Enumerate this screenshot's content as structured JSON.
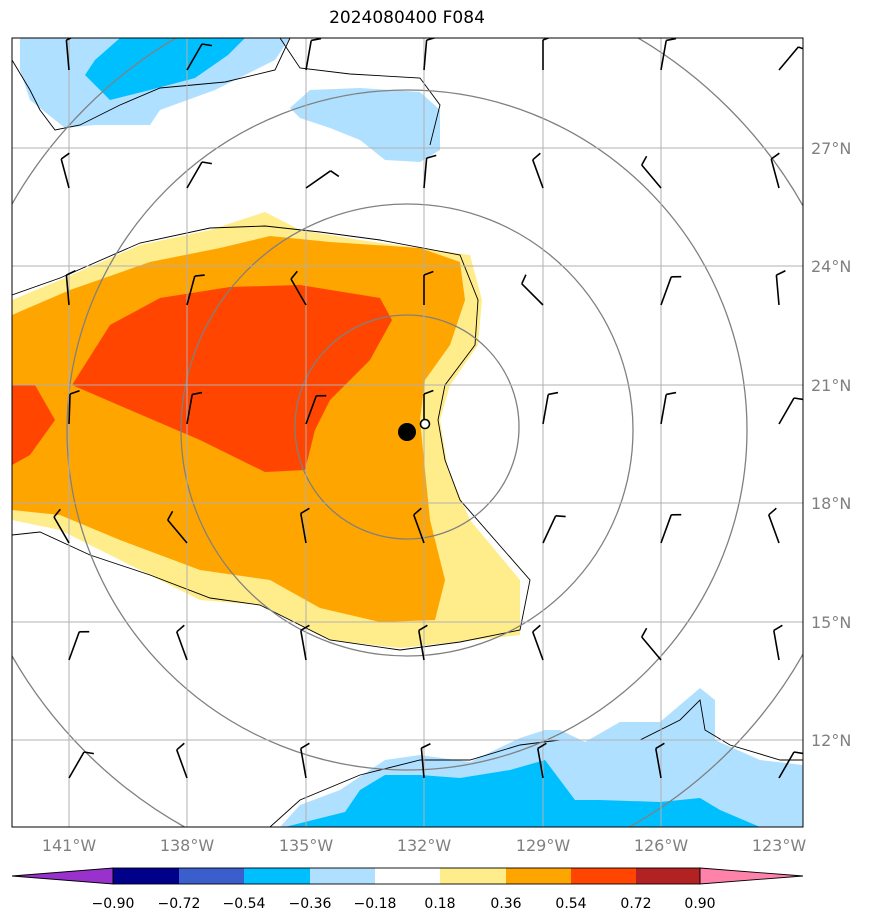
{
  "title": "2024080400 F084",
  "lat_labels": [
    "27°N",
    "24°N",
    "21°N",
    "18°N",
    "15°N",
    "12°N"
  ],
  "lon_labels": [
    "141°W",
    "138°W",
    "135°W",
    "132°W",
    "129°W",
    "126°W",
    "123°W"
  ],
  "colorbar": {
    "ticks": [
      "−0.90",
      "−0.72",
      "−0.54",
      "−0.36",
      "−0.18",
      "0.18",
      "0.36",
      "0.54",
      "0.72",
      "0.90"
    ],
    "colors": [
      "#9932cc",
      "#00008b",
      "#3a5fcd",
      "#00bfff",
      "#b0e0ff",
      "#ffffff",
      "#ffec8b",
      "#ffa500",
      "#ff4500",
      "#b22222",
      "#ff82ab"
    ]
  },
  "colors": {
    "light_yellow": "#ffec8b",
    "orange": "#ffa500",
    "red_orange": "#ff4500",
    "light_blue": "#b0e0ff",
    "deep_sky_blue": "#00bfff"
  },
  "storm_center": {
    "lon": -132.5,
    "lat": 19.8
  },
  "secondary_center": {
    "lon": -132.0,
    "lat": 19.9
  },
  "range_rings": [
    "ring-1",
    "ring-2",
    "ring-3",
    "ring-4"
  ]
}
